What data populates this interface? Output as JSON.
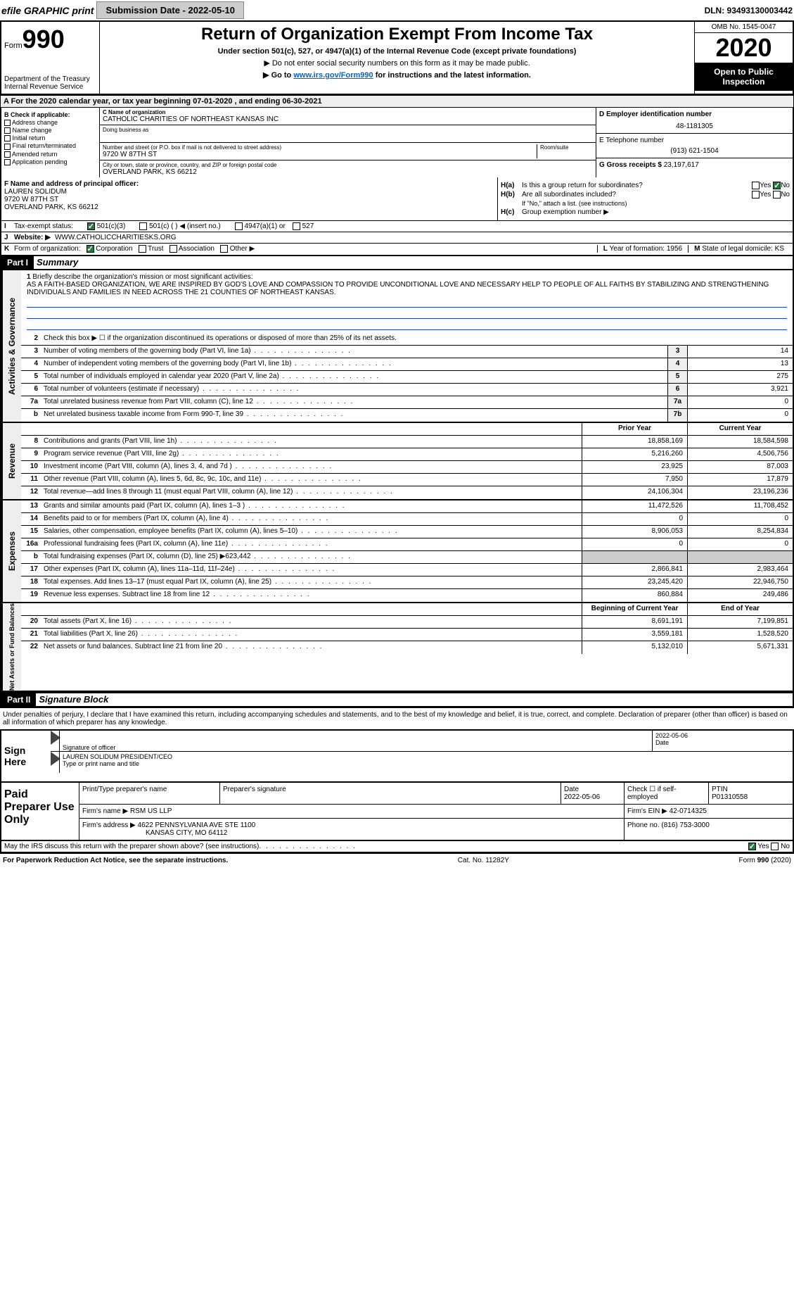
{
  "top": {
    "efile": "efile GRAPHIC print",
    "sub_label": "Submission Date - 2022-05-10",
    "dln": "DLN: 93493130003442"
  },
  "header": {
    "form_label": "Form",
    "form_num": "990",
    "dept": "Department of the Treasury Internal Revenue Service",
    "title": "Return of Organization Exempt From Income Tax",
    "sub1": "Under section 501(c), 527, or 4947(a)(1) of the Internal Revenue Code (except private foundations)",
    "sub2": "▶ Do not enter social security numbers on this form as it may be made public.",
    "sub3_pre": "▶ Go to ",
    "sub3_link": "www.irs.gov/Form990",
    "sub3_post": " for instructions and the latest information.",
    "omb": "OMB No. 1545-0047",
    "year": "2020",
    "open": "Open to Public Inspection"
  },
  "period": "A For the 2020 calendar year, or tax year beginning 07-01-2020   , and ending 06-30-2021",
  "boxB": {
    "title": "B Check if applicable:",
    "items": [
      "Address change",
      "Name change",
      "Initial return",
      "Final return/terminated",
      "Amended return",
      "Application pending"
    ]
  },
  "boxC": {
    "name_label": "C Name of organization",
    "name": "CATHOLIC CHARITIES OF NORTHEAST KANSAS INC",
    "dba_label": "Doing business as",
    "addr_label": "Number and street (or P.O. box if mail is not delivered to street address)",
    "room_label": "Room/suite",
    "addr": "9720 W 87TH ST",
    "city_label": "City or town, state or province, country, and ZIP or foreign postal code",
    "city": "OVERLAND PARK, KS  66212"
  },
  "boxD": {
    "label": "D Employer identification number",
    "value": "48-1181305"
  },
  "boxE": {
    "label": "E Telephone number",
    "value": "(913) 621-1504"
  },
  "boxG": {
    "label": "G Gross receipts $",
    "value": "23,197,617"
  },
  "boxF": {
    "label": "F  Name and address of principal officer:",
    "name": "LAUREN SOLIDUM",
    "addr1": "9720 W 87TH ST",
    "addr2": "OVERLAND PARK, KS  66212"
  },
  "boxH": {
    "a_label": "H(a)",
    "a_text": "Is this a group return for subordinates?",
    "b_label": "H(b)",
    "b_text": "Are all subordinates included?",
    "b_note": "If \"No,\" attach a list. (see instructions)",
    "c_label": "H(c)",
    "c_text": "Group exemption number ▶",
    "yes": "Yes",
    "no": "No"
  },
  "rowI": {
    "label": "I",
    "text": "Tax-exempt status:",
    "opts": [
      "501(c)(3)",
      "501(c) (  ) ◀ (insert no.)",
      "4947(a)(1) or",
      "527"
    ]
  },
  "rowJ": {
    "label": "J",
    "text": "Website: ▶",
    "value": "WWW.CATHOLICCHARITIESKS.ORG"
  },
  "rowK": {
    "label": "K",
    "text": "Form of organization:",
    "opts": [
      "Corporation",
      "Trust",
      "Association",
      "Other ▶"
    ]
  },
  "rowL": {
    "label": "L",
    "text": "Year of formation:",
    "value": "1956"
  },
  "rowM": {
    "label": "M",
    "text": "State of legal domicile:",
    "value": "KS"
  },
  "part1": {
    "hdr": "Part I",
    "title": "Summary",
    "line1_label": "1",
    "line1_text": "Briefly describe the organization's mission or most significant activities:",
    "mission": "AS A FAITH-BASED ORGANIZATION, WE ARE INSPIRED BY GOD'S LOVE AND COMPASSION TO PROVIDE UNCONDITIONAL LOVE AND NECESSARY HELP TO PEOPLE OF ALL FAITHS BY STABILIZING AND STRENGTHENING INDIVIDUALS AND FAMILIES IN NEED ACROSS THE 21 COUNTIES OF NORTHEAST KANSAS.",
    "line2": "Check this box ▶ ☐ if the organization discontinued its operations or disposed of more than 25% of its net assets."
  },
  "gov_tab": "Activities & Governance",
  "rev_tab": "Revenue",
  "exp_tab": "Expenses",
  "net_tab": "Net Assets or Fund Balances",
  "gov_rows": [
    {
      "n": "3",
      "d": "Number of voting members of the governing body (Part VI, line 1a)",
      "b": "3",
      "v": "14"
    },
    {
      "n": "4",
      "d": "Number of independent voting members of the governing body (Part VI, line 1b)",
      "b": "4",
      "v": "13"
    },
    {
      "n": "5",
      "d": "Total number of individuals employed in calendar year 2020 (Part V, line 2a)",
      "b": "5",
      "v": "275"
    },
    {
      "n": "6",
      "d": "Total number of volunteers (estimate if necessary)",
      "b": "6",
      "v": "3,921"
    },
    {
      "n": "7a",
      "d": "Total unrelated business revenue from Part VIII, column (C), line 12",
      "b": "7a",
      "v": "0"
    },
    {
      "n": "b",
      "d": "Net unrelated business taxable income from Form 990-T, line 39",
      "b": "7b",
      "v": "0"
    }
  ],
  "rev_hdr": {
    "py": "Prior Year",
    "cy": "Current Year"
  },
  "rev_rows": [
    {
      "n": "8",
      "d": "Contributions and grants (Part VIII, line 1h)",
      "py": "18,858,169",
      "cy": "18,584,598"
    },
    {
      "n": "9",
      "d": "Program service revenue (Part VIII, line 2g)",
      "py": "5,216,260",
      "cy": "4,506,756"
    },
    {
      "n": "10",
      "d": "Investment income (Part VIII, column (A), lines 3, 4, and 7d )",
      "py": "23,925",
      "cy": "87,003"
    },
    {
      "n": "11",
      "d": "Other revenue (Part VIII, column (A), lines 5, 6d, 8c, 9c, 10c, and 11e)",
      "py": "7,950",
      "cy": "17,879"
    },
    {
      "n": "12",
      "d": "Total revenue—add lines 8 through 11 (must equal Part VIII, column (A), line 12)",
      "py": "24,106,304",
      "cy": "23,196,236"
    }
  ],
  "exp_rows": [
    {
      "n": "13",
      "d": "Grants and similar amounts paid (Part IX, column (A), lines 1–3 )",
      "py": "11,472,526",
      "cy": "11,708,452"
    },
    {
      "n": "14",
      "d": "Benefits paid to or for members (Part IX, column (A), line 4)",
      "py": "0",
      "cy": "0"
    },
    {
      "n": "15",
      "d": "Salaries, other compensation, employee benefits (Part IX, column (A), lines 5–10)",
      "py": "8,906,053",
      "cy": "8,254,834"
    },
    {
      "n": "16a",
      "d": "Professional fundraising fees (Part IX, column (A), line 11e)",
      "py": "0",
      "cy": "0"
    },
    {
      "n": "b",
      "d": "Total fundraising expenses (Part IX, column (D), line 25) ▶623,442",
      "py": "",
      "cy": "",
      "gray": true
    },
    {
      "n": "17",
      "d": "Other expenses (Part IX, column (A), lines 11a–11d, 11f–24e)",
      "py": "2,866,841",
      "cy": "2,983,464"
    },
    {
      "n": "18",
      "d": "Total expenses. Add lines 13–17 (must equal Part IX, column (A), line 25)",
      "py": "23,245,420",
      "cy": "22,946,750"
    },
    {
      "n": "19",
      "d": "Revenue less expenses. Subtract line 18 from line 12",
      "py": "860,884",
      "cy": "249,486"
    }
  ],
  "net_hdr": {
    "py": "Beginning of Current Year",
    "cy": "End of Year"
  },
  "net_rows": [
    {
      "n": "20",
      "d": "Total assets (Part X, line 16)",
      "py": "8,691,191",
      "cy": "7,199,851"
    },
    {
      "n": "21",
      "d": "Total liabilities (Part X, line 26)",
      "py": "3,559,181",
      "cy": "1,528,520"
    },
    {
      "n": "22",
      "d": "Net assets or fund balances. Subtract line 21 from line 20",
      "py": "5,132,010",
      "cy": "5,671,331"
    }
  ],
  "part2": {
    "hdr": "Part II",
    "title": "Signature Block",
    "intro": "Under penalties of perjury, I declare that I have examined this return, including accompanying schedules and statements, and to the best of my knowledge and belief, it is true, correct, and complete. Declaration of preparer (other than officer) is based on all information of which preparer has any knowledge."
  },
  "sign": {
    "here": "Sign Here",
    "sig_label": "Signature of officer",
    "date": "2022-05-06",
    "date_label": "Date",
    "name": "LAUREN SOLIDUM  PRESIDENT/CEO",
    "name_label": "Type or print name and title"
  },
  "paid": {
    "title": "Paid Preparer Use Only",
    "prep_name_label": "Print/Type preparer's name",
    "prep_sig_label": "Preparer's signature",
    "date_label": "Date",
    "date": "2022-05-06",
    "check_label": "Check ☐ if self-employed",
    "ptin_label": "PTIN",
    "ptin": "P01310558",
    "firm_name_label": "Firm's name    ▶",
    "firm_name": "RSM US LLP",
    "firm_ein_label": "Firm's EIN ▶",
    "firm_ein": "42-0714325",
    "firm_addr_label": "Firm's address ▶",
    "firm_addr1": "4622 PENNSYLVANIA AVE STE 1100",
    "firm_addr2": "KANSAS CITY, MO  64112",
    "phone_label": "Phone no.",
    "phone": "(816) 753-3000"
  },
  "discuss": {
    "text": "May the IRS discuss this return with the preparer shown above? (see instructions)",
    "yes": "Yes",
    "no": "No"
  },
  "footer": {
    "left": "For Paperwork Reduction Act Notice, see the separate instructions.",
    "mid": "Cat. No. 11282Y",
    "right": "Form 990 (2020)"
  }
}
